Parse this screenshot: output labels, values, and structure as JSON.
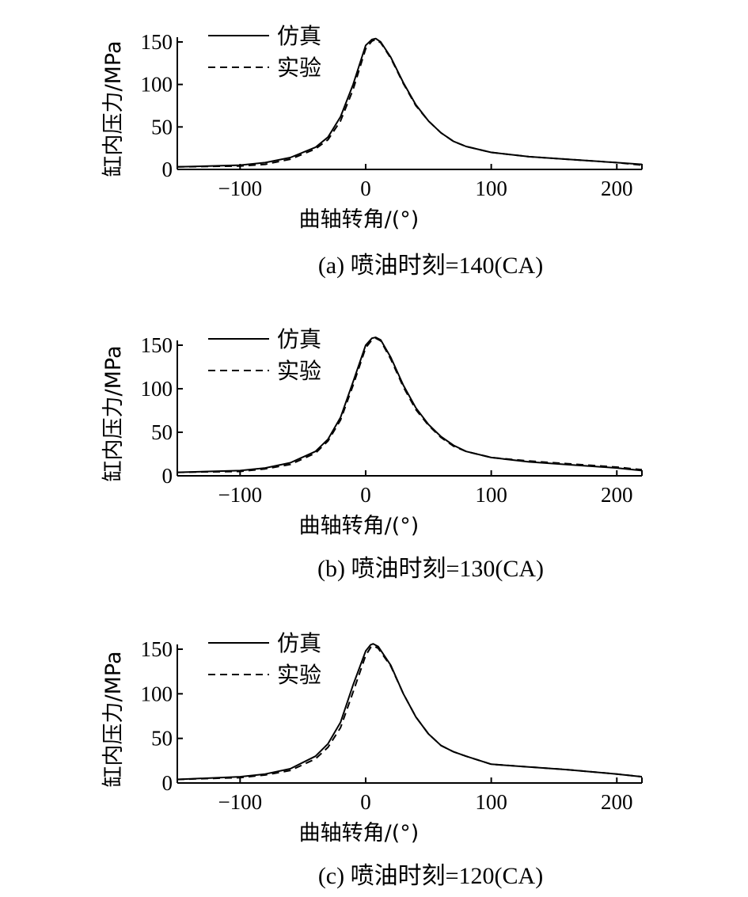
{
  "chart_data": [
    {
      "type": "line",
      "caption": "(a) 喷油时刻=140(CA)",
      "xlabel": "曲轴转角/(°)",
      "ylabel": "缸内压力/MPa",
      "xlim": [
        -150,
        220
      ],
      "ylim": [
        0,
        150
      ],
      "xticks": [
        -100,
        0,
        100,
        200
      ],
      "xtick_labels": [
        "−100",
        "0",
        "100",
        "200"
      ],
      "yticks": [
        0,
        50,
        100,
        150
      ],
      "ytick_labels": [
        "0",
        "50",
        "100",
        "150"
      ],
      "legend_position": "top-left",
      "series": [
        {
          "name": "仿真",
          "style": "solid",
          "x": [
            -150,
            -100,
            -80,
            -60,
            -40,
            -30,
            -20,
            -10,
            0,
            5,
            8,
            12,
            20,
            30,
            40,
            50,
            60,
            70,
            80,
            100,
            130,
            160,
            200,
            220
          ],
          "y": [
            3,
            5,
            8,
            14,
            26,
            38,
            62,
            100,
            146,
            153,
            154,
            150,
            132,
            102,
            76,
            57,
            43,
            33,
            27,
            20,
            15,
            12,
            8,
            6
          ]
        },
        {
          "name": "实验",
          "style": "dashed",
          "x": [
            -150,
            -100,
            -80,
            -60,
            -40,
            -30,
            -20,
            -10,
            0,
            5,
            8,
            12,
            20,
            30,
            40,
            50,
            60,
            70,
            80,
            100,
            130,
            160,
            200,
            220
          ],
          "y": [
            3,
            4,
            6,
            12,
            24,
            35,
            57,
            94,
            142,
            151,
            153,
            149,
            131,
            101,
            75,
            57,
            43,
            33,
            27,
            20,
            15,
            12,
            8,
            5
          ]
        }
      ]
    },
    {
      "type": "line",
      "caption": "(b) 喷油时刻=130(CA)",
      "xlabel": "曲轴转角/(°)",
      "ylabel": "缸内压力/MPa",
      "xlim": [
        -150,
        220
      ],
      "ylim": [
        0,
        150
      ],
      "xticks": [
        -100,
        0,
        100,
        200
      ],
      "xtick_labels": [
        "−100",
        "0",
        "100",
        "200"
      ],
      "yticks": [
        0,
        50,
        100,
        150
      ],
      "ytick_labels": [
        "0",
        "50",
        "100",
        "150"
      ],
      "legend_position": "top-left",
      "series": [
        {
          "name": "仿真",
          "style": "solid",
          "x": [
            -150,
            -100,
            -80,
            -60,
            -40,
            -30,
            -20,
            -10,
            0,
            5,
            8,
            12,
            20,
            30,
            40,
            50,
            60,
            70,
            80,
            100,
            130,
            160,
            200,
            220
          ],
          "y": [
            4,
            6,
            9,
            15,
            28,
            42,
            67,
            108,
            150,
            158,
            159,
            156,
            136,
            104,
            78,
            59,
            45,
            35,
            28,
            21,
            16,
            13,
            9,
            6
          ]
        },
        {
          "name": "实验",
          "style": "dashed",
          "x": [
            -150,
            -100,
            -80,
            -60,
            -40,
            -30,
            -20,
            -10,
            0,
            5,
            8,
            12,
            20,
            30,
            40,
            50,
            60,
            70,
            80,
            100,
            130,
            160,
            200,
            220
          ],
          "y": [
            4,
            5,
            8,
            13,
            26,
            40,
            64,
            104,
            147,
            156,
            158,
            155,
            134,
            102,
            76,
            58,
            44,
            34,
            28,
            21,
            17,
            14,
            10,
            7
          ]
        }
      ]
    },
    {
      "type": "line",
      "caption": "(c) 喷油时刻=120(CA)",
      "xlabel": "曲轴转角/(°)",
      "ylabel": "缸内压力/MPa",
      "xlim": [
        -150,
        220
      ],
      "ylim": [
        0,
        150
      ],
      "xticks": [
        -100,
        0,
        100,
        200
      ],
      "xtick_labels": [
        "−100",
        "0",
        "100",
        "200"
      ],
      "yticks": [
        0,
        50,
        100,
        150
      ],
      "ytick_labels": [
        "0",
        "50",
        "100",
        "150"
      ],
      "legend_position": "top-left",
      "series": [
        {
          "name": "仿真",
          "style": "solid",
          "x": [
            -150,
            -100,
            -80,
            -60,
            -40,
            -30,
            -20,
            -10,
            0,
            4,
            6,
            10,
            20,
            30,
            40,
            50,
            60,
            70,
            80,
            100,
            130,
            160,
            200,
            220
          ],
          "y": [
            4,
            7,
            10,
            16,
            30,
            44,
            68,
            110,
            148,
            155,
            156,
            153,
            132,
            100,
            74,
            55,
            42,
            35,
            30,
            21,
            18,
            15,
            10,
            7
          ]
        },
        {
          "name": "实验",
          "style": "dashed",
          "x": [
            -150,
            -100,
            -80,
            -60,
            -40,
            -30,
            -20,
            -10,
            0,
            4,
            6,
            10,
            20,
            30,
            40,
            50,
            60,
            70,
            80,
            100,
            130,
            160,
            200,
            220
          ],
          "y": [
            4,
            6,
            9,
            14,
            27,
            40,
            62,
            102,
            143,
            152,
            154,
            151,
            131,
            100,
            74,
            55,
            42,
            35,
            30,
            21,
            18,
            15,
            10,
            7
          ]
        }
      ]
    }
  ]
}
